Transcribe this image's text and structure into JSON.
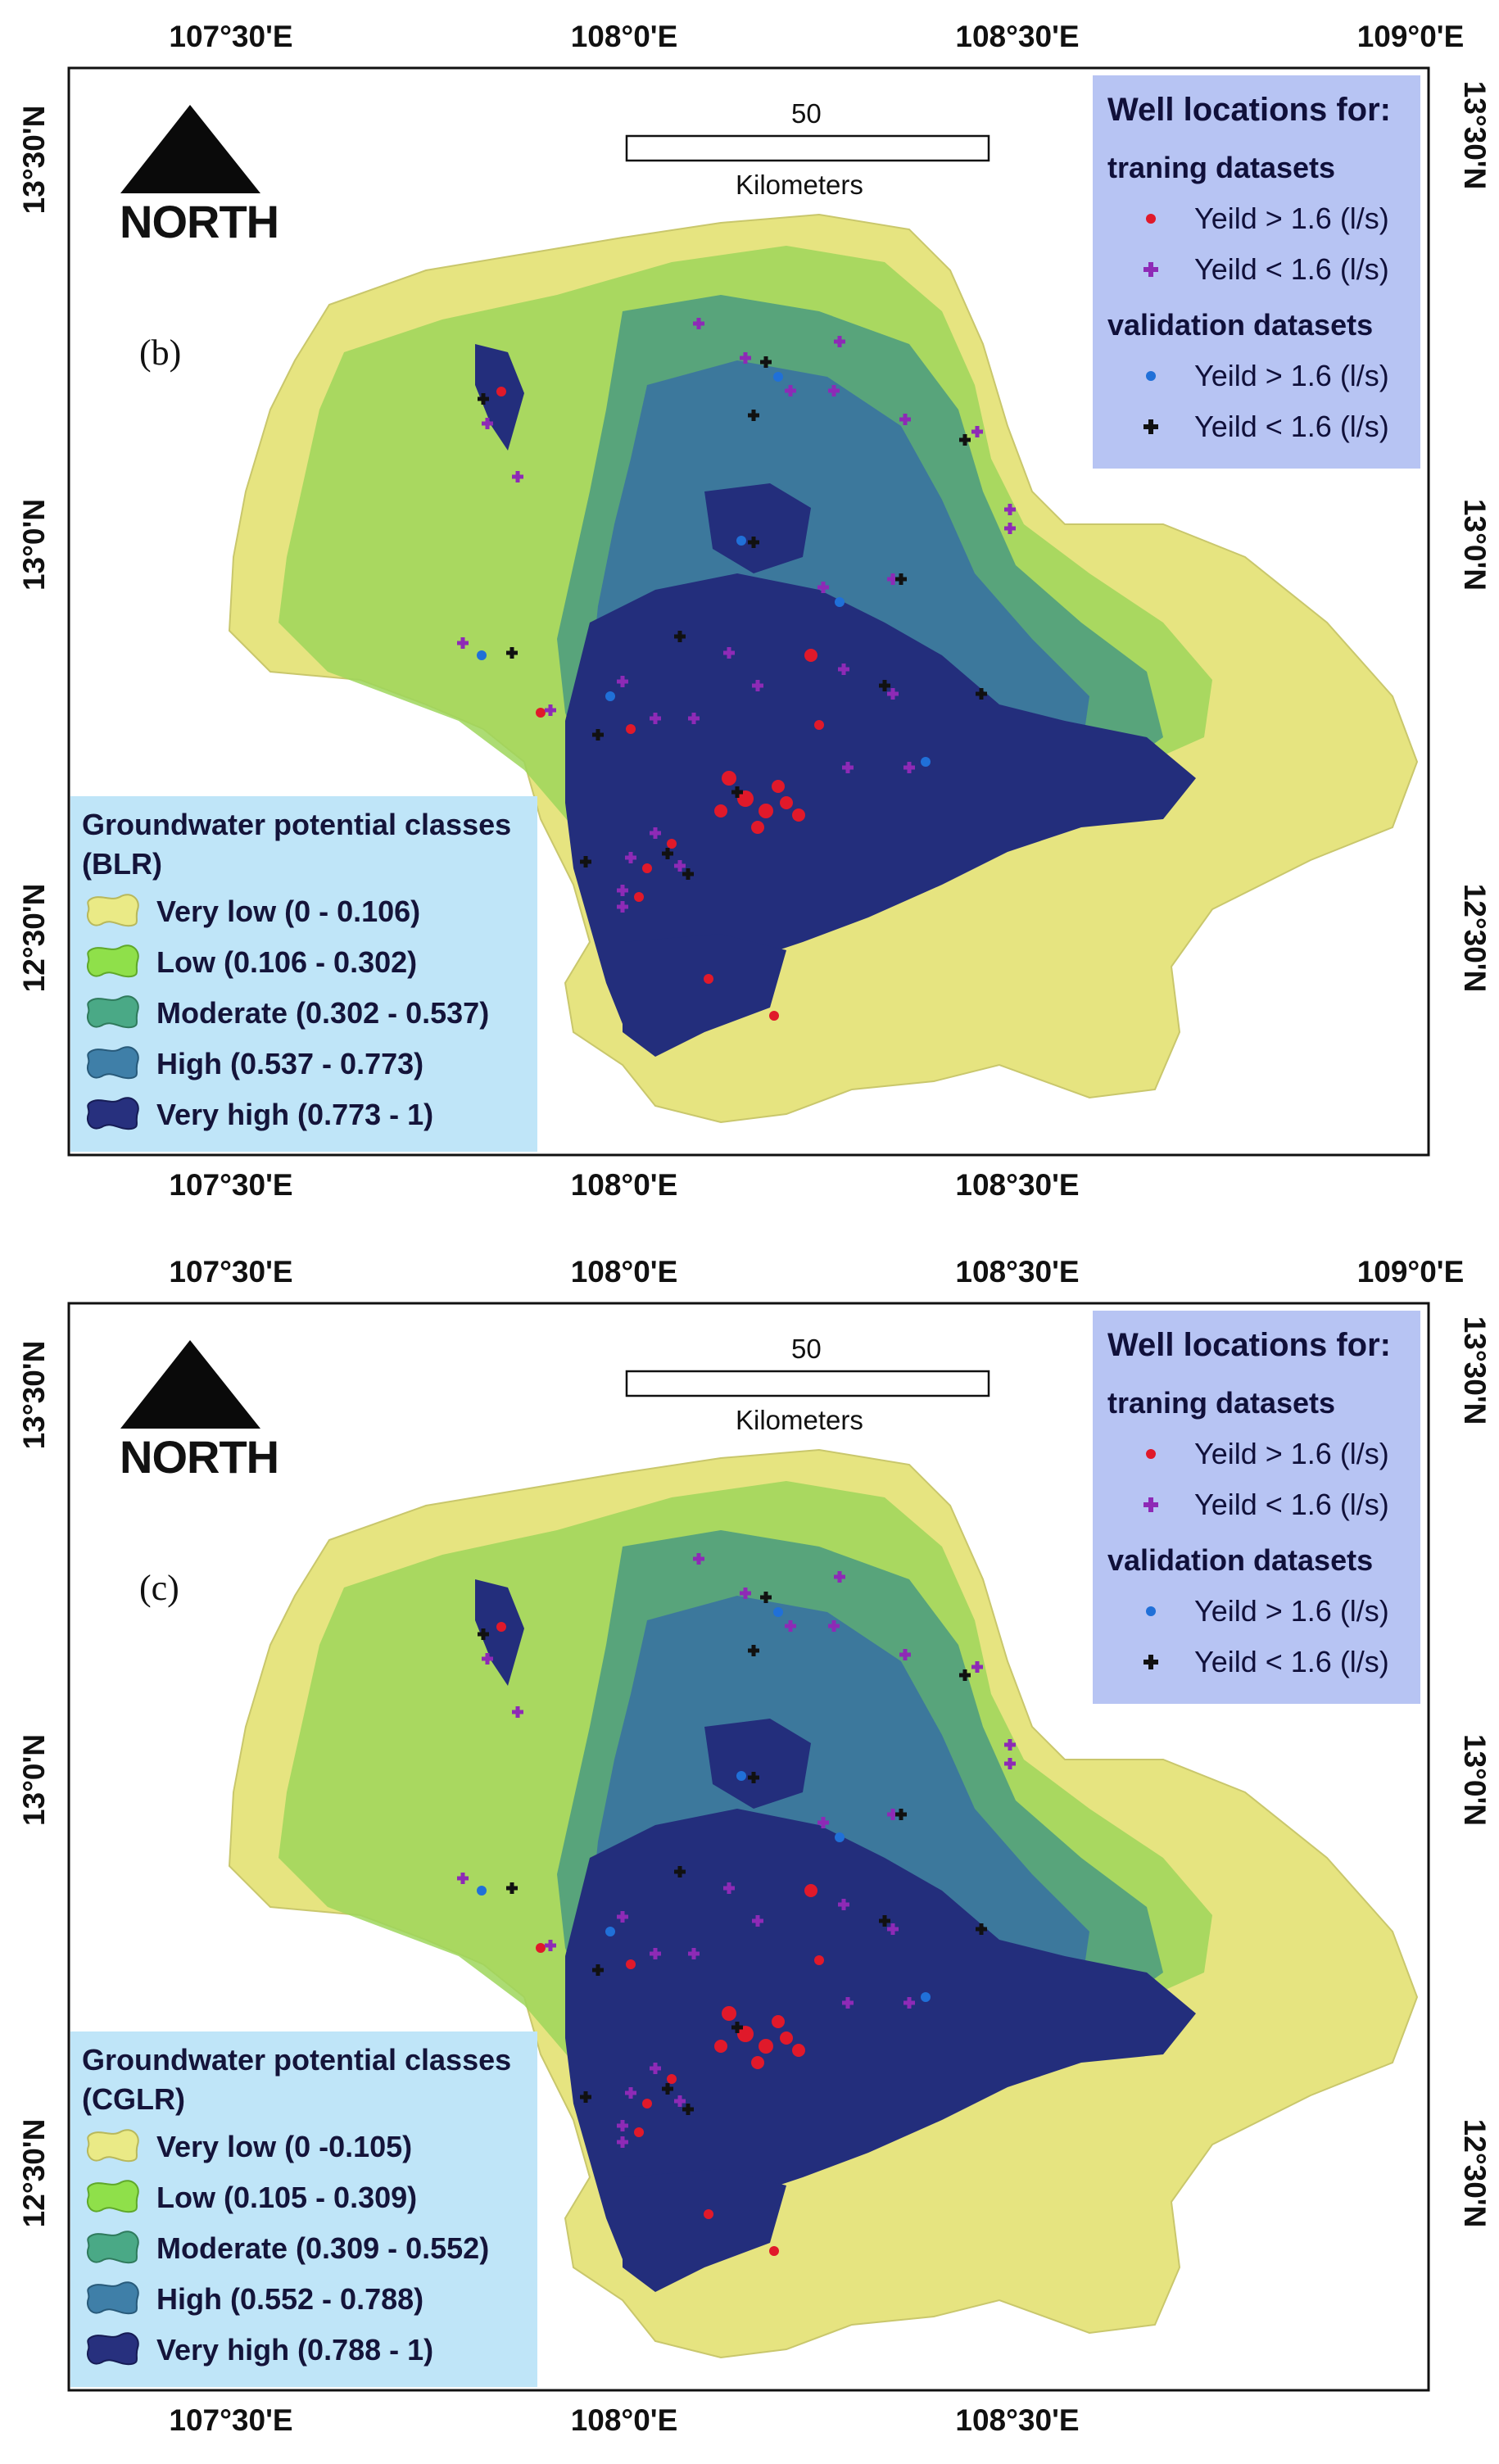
{
  "axes": {
    "top_lon_labels": [
      "107°30'E",
      "108°0'E",
      "108°30'E",
      "109°0'E"
    ],
    "bottom_lon_labels": [
      "107°30'E",
      "108°0'E",
      "108°30'E"
    ],
    "left_lat_labels": [
      "13°30'N",
      "13°0'N",
      "12°30'N"
    ],
    "right_lat_labels": [
      "13°30'N",
      "13°0'N",
      "12°30'N"
    ]
  },
  "north_arrow": {
    "label": "NORTH"
  },
  "scale_bar": {
    "distance": "50",
    "unit": "Kilometers"
  },
  "well_legend": {
    "title": "Well locations for:",
    "training_header": "traning datasets",
    "validation_header": "validation datasets",
    "items": {
      "train_high": {
        "label": "Yeild > 1.6 (l/s)",
        "symbol": "dot",
        "color": "#e0192a"
      },
      "train_low": {
        "label": "Yeild < 1.6 (l/s)",
        "symbol": "plus",
        "color": "#8e2ab6"
      },
      "val_high": {
        "label": "Yeild > 1.6 (l/s)",
        "symbol": "dot",
        "color": "#2070d8"
      },
      "val_low": {
        "label": "Yeild < 1.6 (l/s)",
        "symbol": "plus",
        "color": "#111111"
      }
    }
  },
  "panels": [
    {
      "letter": "(b)",
      "legend": {
        "title_line1": "Groundwater potential classes",
        "title_line2": "(BLR)",
        "classes": [
          {
            "label": "Very low (0 - 0.106)",
            "color": "#eaea86"
          },
          {
            "label": "Low (0.106 - 0.302)",
            "color": "#8fe04a"
          },
          {
            "label": "Moderate (0.302 - 0.537)",
            "color": "#4aa986"
          },
          {
            "label": "High (0.537 - 0.773)",
            "color": "#3f7fa8"
          },
          {
            "label": "Very high (0.773 - 1)",
            "color": "#27307e"
          }
        ]
      }
    },
    {
      "letter": "(c)",
      "legend": {
        "title_line1": "Groundwater potential classes",
        "title_line2": "(CGLR)",
        "classes": [
          {
            "label": "Very low (0 -0.105)",
            "color": "#eaea86"
          },
          {
            "label": "Low (0.105 - 0.309)",
            "color": "#8fe04a"
          },
          {
            "label": "Moderate (0.309 - 0.552)",
            "color": "#4aa986"
          },
          {
            "label": "High (0.552 - 0.788)",
            "color": "#3f7fa8"
          },
          {
            "label": "Very high (0.788 - 1)",
            "color": "#27307e"
          }
        ]
      }
    }
  ],
  "map_colors": {
    "very_low": "#e6e480",
    "low": "#9ed65a",
    "moderate": "#4f9f7e",
    "high": "#3a73a0",
    "very_high": "#232e7c"
  }
}
